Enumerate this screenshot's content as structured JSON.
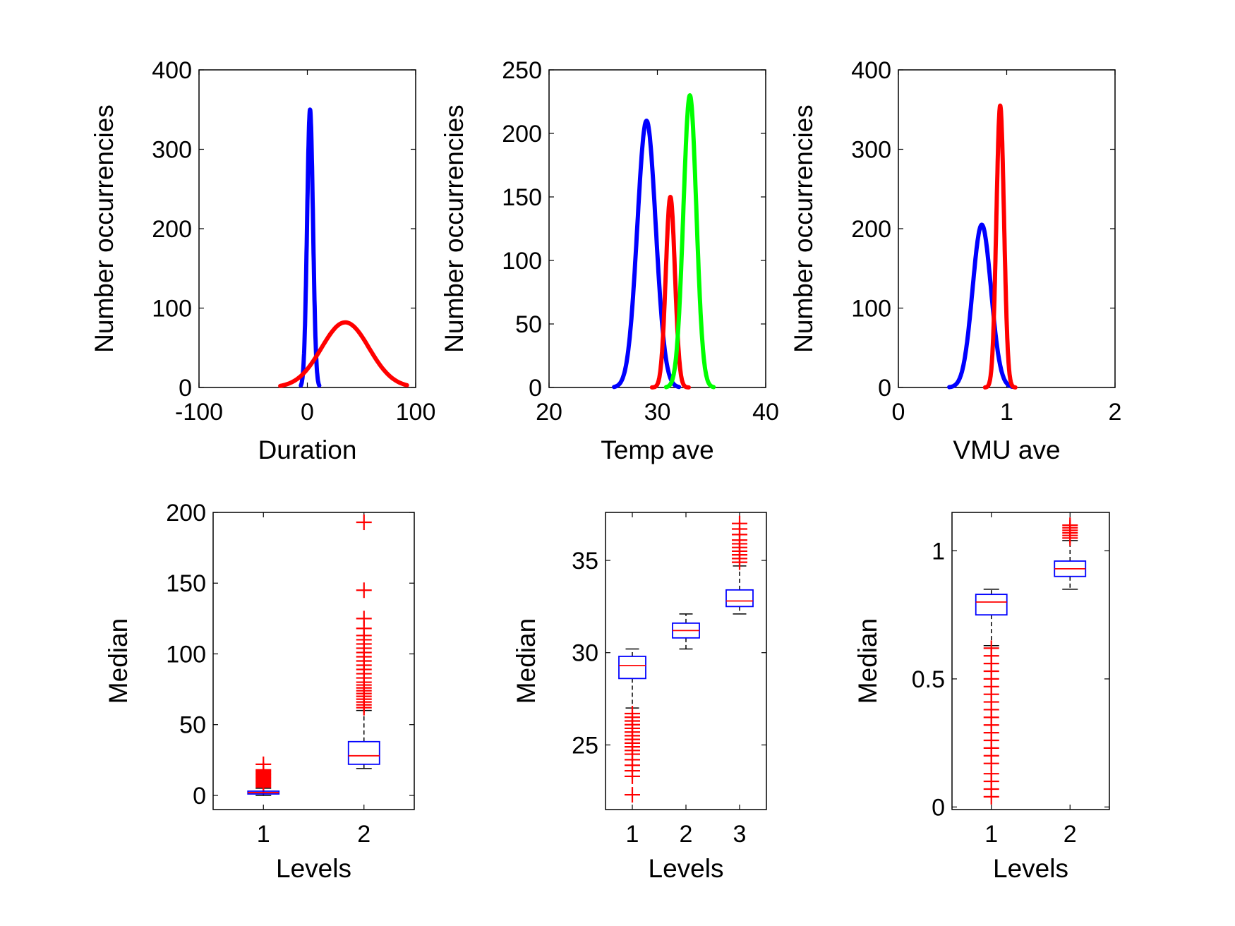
{
  "chart_data": [
    {
      "panel": "top-left",
      "type": "line",
      "xlabel": "Duration",
      "ylabel": "Number occurrencies",
      "xlim": [
        -100,
        100
      ],
      "ylim": [
        0,
        400
      ],
      "xticks": [
        "-100",
        "0",
        "100"
      ],
      "yticks": [
        "0",
        "100",
        "200",
        "300",
        "400"
      ],
      "grid": false,
      "series": [
        {
          "color": "#0000ff",
          "curve": "gaussian",
          "x_range": [
            -6,
            11
          ],
          "peak_x": 2.5,
          "peak_y": 350,
          "sigma": 2.7
        },
        {
          "color": "#ff0000",
          "curve": "gaussian",
          "x_range": [
            -25,
            92
          ],
          "peak_x": 35,
          "peak_y": 82,
          "sigma": 22
        }
      ]
    },
    {
      "panel": "top-middle",
      "type": "line",
      "xlabel": "Temp ave",
      "ylabel": "Number occurrencies",
      "xlim": [
        20,
        40
      ],
      "ylim": [
        0,
        250
      ],
      "xticks": [
        "20",
        "30",
        "40"
      ],
      "yticks": [
        "0",
        "50",
        "100",
        "150",
        "200",
        "250"
      ],
      "grid": false,
      "series": [
        {
          "color": "#0000ff",
          "curve": "gaussian",
          "x_range": [
            26,
            32
          ],
          "peak_x": 29,
          "peak_y": 210,
          "sigma": 0.85
        },
        {
          "color": "#ff0000",
          "curve": "gaussian",
          "x_range": [
            29.5,
            32.9
          ],
          "peak_x": 31.2,
          "peak_y": 150,
          "sigma": 0.42
        },
        {
          "color": "#00ff00",
          "curve": "gaussian",
          "x_range": [
            30.8,
            35.2
          ],
          "peak_x": 33,
          "peak_y": 230,
          "sigma": 0.6
        }
      ]
    },
    {
      "panel": "top-right",
      "type": "line",
      "xlabel": "VMU ave",
      "ylabel": "Number occurrencies",
      "xlim": [
        0,
        2
      ],
      "ylim": [
        0,
        400
      ],
      "xticks": [
        "0",
        "1",
        "2"
      ],
      "yticks": [
        "0",
        "100",
        "200",
        "300",
        "400"
      ],
      "grid": false,
      "series": [
        {
          "color": "#0000ff",
          "curve": "gaussian",
          "x_range": [
            0.47,
            1.05
          ],
          "peak_x": 0.77,
          "peak_y": 205,
          "sigma": 0.085
        },
        {
          "color": "#ff0000",
          "curve": "gaussian",
          "x_range": [
            0.8,
            1.08
          ],
          "peak_x": 0.94,
          "peak_y": 355,
          "sigma": 0.035
        }
      ]
    },
    {
      "panel": "bottom-left",
      "type": "boxplot",
      "xlabel": "Levels",
      "ylabel": "Median",
      "xlim": [
        0.5,
        2.5
      ],
      "ylim": [
        -10,
        200
      ],
      "xticks": [
        "1",
        "2"
      ],
      "yticks": [
        "0",
        "50",
        "100",
        "150",
        "200"
      ],
      "grid": false,
      "boxes": [
        {
          "x": 1,
          "whisker_low": 0,
          "q1": 1,
          "median": 2,
          "q3": 3,
          "whisker_high": 5,
          "outliers": [
            6,
            7,
            8,
            9,
            10,
            11,
            12,
            13,
            14,
            15,
            16,
            17,
            18,
            22
          ]
        },
        {
          "x": 2,
          "whisker_low": 19,
          "q1": 22,
          "median": 28,
          "q3": 38,
          "whisker_high": 60,
          "outliers": [
            62,
            64,
            66,
            68,
            70,
            72,
            74,
            76,
            78,
            80,
            83,
            86,
            89,
            92,
            95,
            98,
            101,
            104,
            107,
            110,
            113,
            118,
            125,
            145,
            193
          ]
        }
      ]
    },
    {
      "panel": "bottom-middle",
      "type": "boxplot",
      "xlabel": "Levels",
      "ylabel": "Median",
      "xlim": [
        0.5,
        3.5
      ],
      "ylim": [
        21.5,
        37.6
      ],
      "xticks": [
        "1",
        "2",
        "3"
      ],
      "yticks": [
        "25",
        "30",
        "35"
      ],
      "grid": false,
      "boxes": [
        {
          "x": 1,
          "whisker_low": 27,
          "q1": 28.6,
          "median": 29.3,
          "q3": 29.8,
          "whisker_high": 30.2,
          "outliers": [
            22.3,
            23.3,
            23.6,
            23.9,
            24.2,
            24.5,
            24.7,
            24.9,
            25.1,
            25.3,
            25.5,
            25.7,
            25.9,
            26.1,
            26.3,
            26.5,
            26.7
          ]
        },
        {
          "x": 2,
          "whisker_low": 30.2,
          "q1": 30.8,
          "median": 31.2,
          "q3": 31.6,
          "whisker_high": 32.1,
          "outliers": []
        },
        {
          "x": 3,
          "whisker_low": 32.1,
          "q1": 32.5,
          "median": 32.8,
          "q3": 33.4,
          "whisker_high": 34.7,
          "outliers": [
            34.9,
            35.1,
            35.3,
            35.5,
            35.7,
            35.9,
            36.1,
            36.4,
            36.7,
            37.0
          ]
        }
      ]
    },
    {
      "panel": "bottom-right",
      "type": "boxplot",
      "xlabel": "Levels",
      "ylabel": "Median",
      "xlim": [
        0.5,
        2.5
      ],
      "ylim": [
        -0.01,
        1.15
      ],
      "xticks": [
        "1",
        "2"
      ],
      "yticks": [
        "0",
        "0.5",
        "1"
      ],
      "grid": false,
      "boxes": [
        {
          "x": 1,
          "whisker_low": 0.63,
          "q1": 0.75,
          "median": 0.8,
          "q3": 0.83,
          "whisker_high": 0.85,
          "outliers": [
            0.04,
            0.07,
            0.1,
            0.13,
            0.17,
            0.2,
            0.23,
            0.26,
            0.29,
            0.32,
            0.35,
            0.38,
            0.41,
            0.44,
            0.47,
            0.5,
            0.53,
            0.56,
            0.59,
            0.62
          ]
        },
        {
          "x": 2,
          "whisker_low": 0.85,
          "q1": 0.9,
          "median": 0.93,
          "q3": 0.96,
          "whisker_high": 1.04,
          "outliers": [
            1.05,
            1.06,
            1.07,
            1.08,
            1.09,
            1.1
          ]
        }
      ]
    }
  ],
  "colors": {
    "box": "#0000ff",
    "median": "#ff0000",
    "outlier": "#ff0000",
    "whisker": "#000000"
  }
}
